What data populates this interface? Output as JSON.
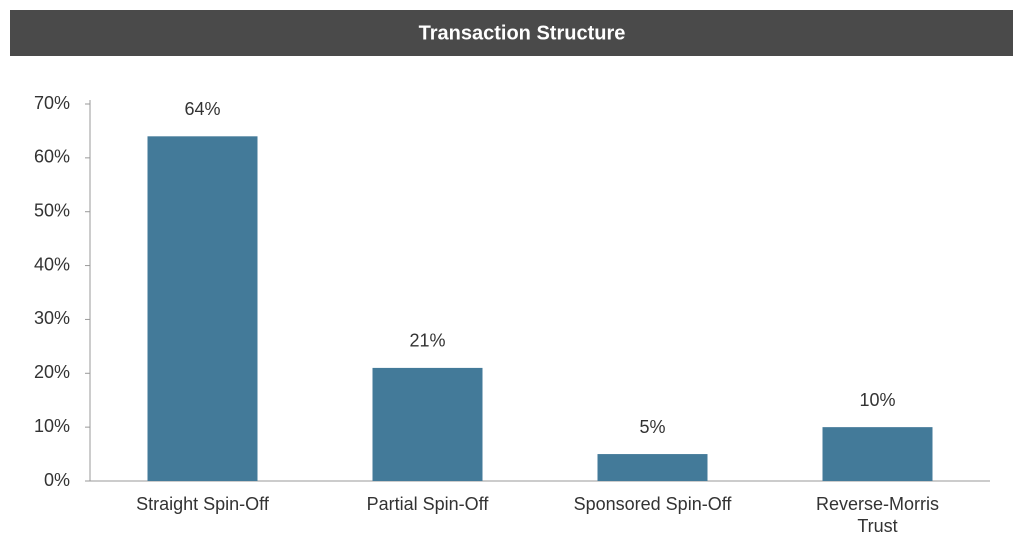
{
  "chart_data": {
    "type": "bar",
    "title": "Transaction Structure",
    "categories": [
      "Straight Spin-Off",
      "Partial Spin-Off",
      "Sponsored Spin-Off",
      "Reverse-Morris Trust"
    ],
    "values": [
      64,
      21,
      5,
      10
    ],
    "value_labels": [
      "64%",
      "21%",
      "5%",
      "10%"
    ],
    "color": "#437a99",
    "ylim": [
      0,
      70
    ],
    "yticks": [
      {
        "value": 0,
        "label": "0%"
      },
      {
        "value": 10,
        "label": "10%"
      },
      {
        "value": 20,
        "label": "20%"
      },
      {
        "value": 30,
        "label": "30%"
      },
      {
        "value": 40,
        "label": "40%"
      },
      {
        "value": 50,
        "label": "50%"
      },
      {
        "value": 60,
        "label": "60%"
      },
      {
        "value": 70,
        "label": "70%"
      }
    ],
    "grid": false
  }
}
